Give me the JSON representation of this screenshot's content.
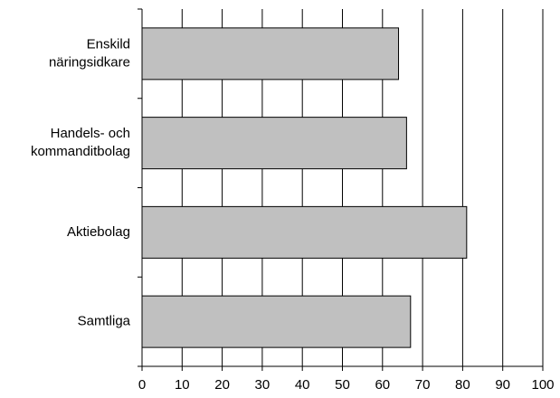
{
  "chart_data": {
    "type": "bar",
    "orientation": "horizontal",
    "categories": [
      [
        "Enskild",
        "näringsidkare"
      ],
      [
        "Handels- och",
        "kommanditbolag"
      ],
      [
        "Aktiebolag"
      ],
      [
        "Samtliga"
      ]
    ],
    "values": [
      64,
      66,
      81,
      67
    ],
    "color": "#c0c0c0",
    "xlim": [
      0,
      100
    ],
    "xticks": [
      0,
      10,
      20,
      30,
      40,
      50,
      60,
      70,
      80,
      90,
      100
    ],
    "grid": true
  }
}
